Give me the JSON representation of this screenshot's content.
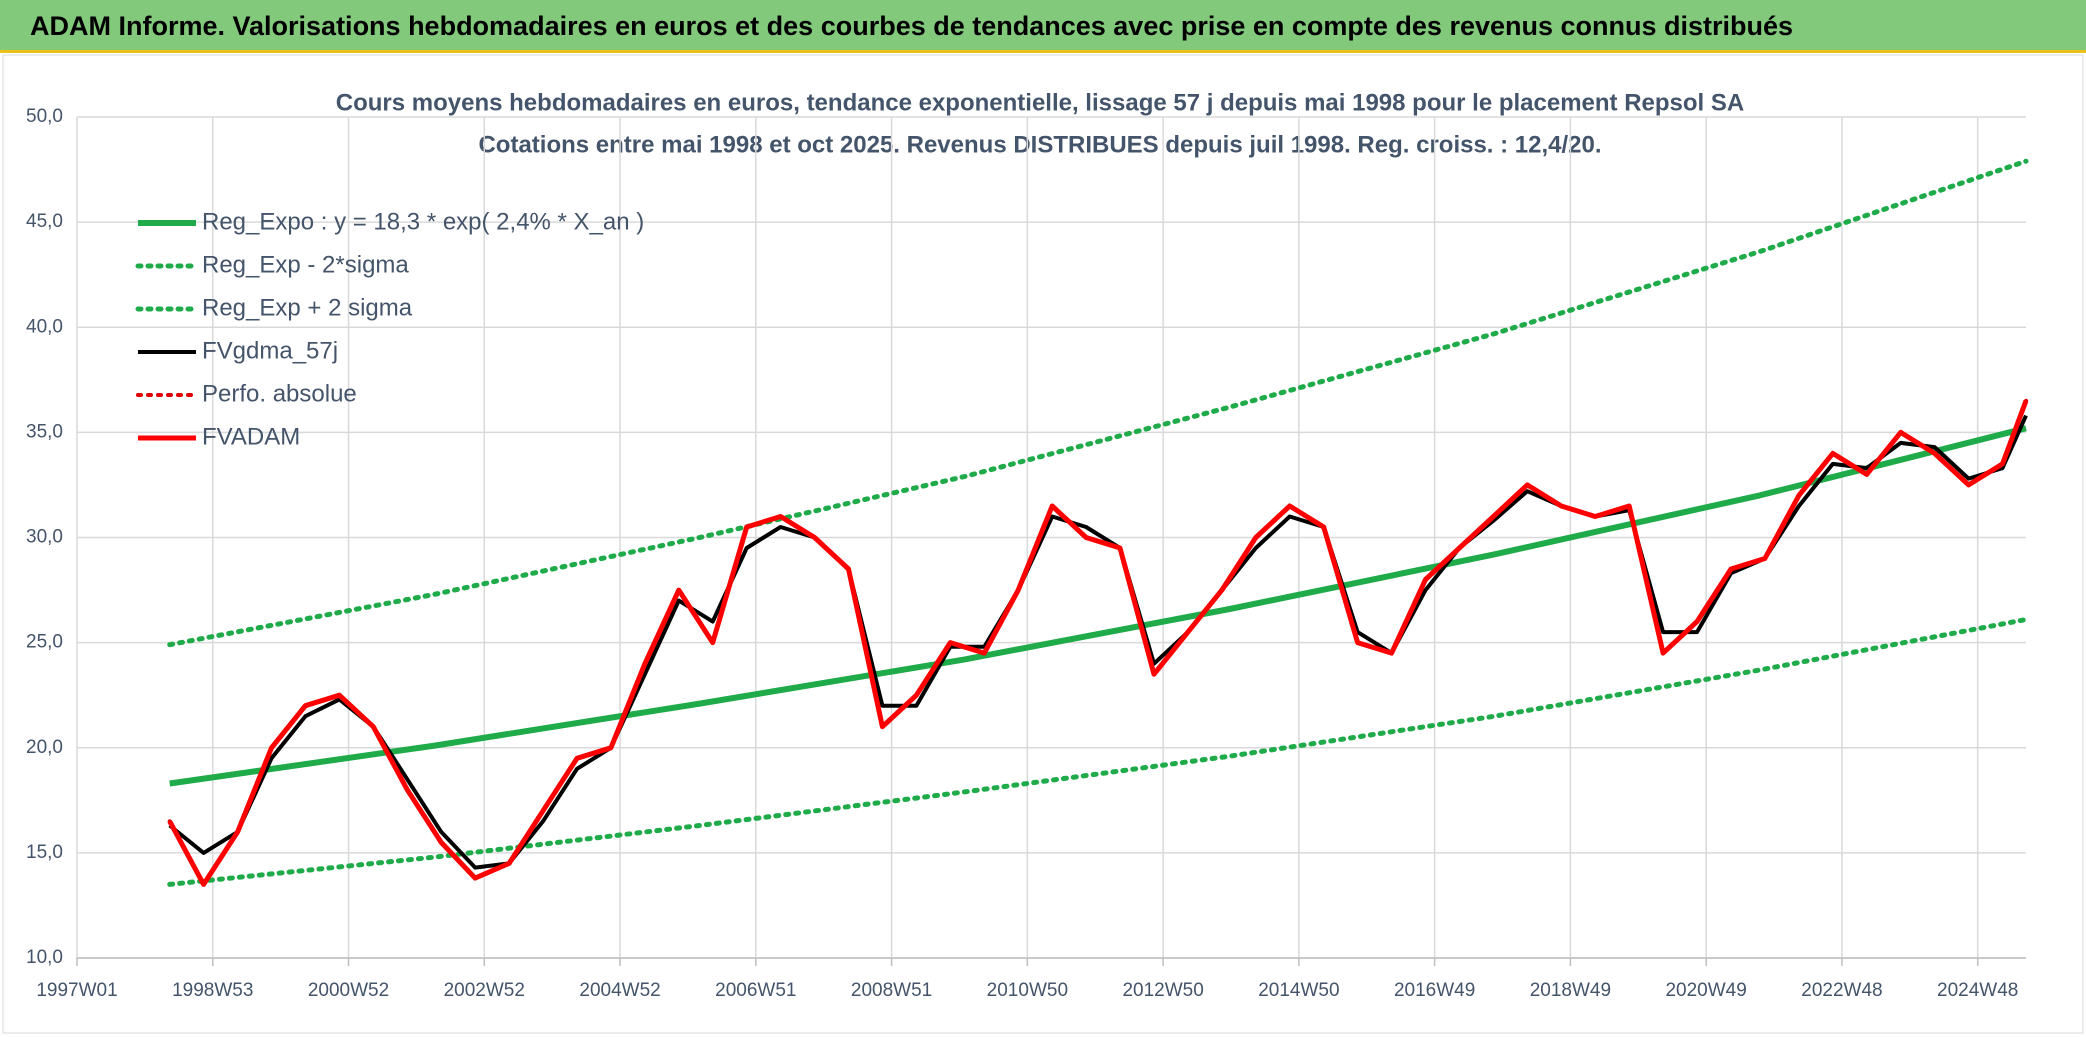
{
  "header": {
    "title": "ADAM Informe. Valorisations hebdomadaires en euros et des courbes de tendances avec prise en compte des revenus connus distribués"
  },
  "chart_data": {
    "type": "line",
    "title": "Cours moyens hebdomadaires en euros, tendance exponentielle, lissage 57 j depuis mai 1998 pour le placement Repsol SA",
    "subtitle": "Cotations entre mai 1998 et oct 2025. Revenus DISTRIBUES depuis juil 1998. Reg. croiss. : 12,4/20.",
    "grid": true,
    "xlim": [
      0,
      1493
    ],
    "xticks": [
      {
        "value": 0,
        "label": "1997W01"
      },
      {
        "value": 104,
        "label": "1998W53"
      },
      {
        "value": 208,
        "label": "2000W52"
      },
      {
        "value": 312,
        "label": "2002W52"
      },
      {
        "value": 416,
        "label": "2004W52"
      },
      {
        "value": 520,
        "label": "2006W51"
      },
      {
        "value": 624,
        "label": "2008W51"
      },
      {
        "value": 728,
        "label": "2010W50"
      },
      {
        "value": 832,
        "label": "2012W50"
      },
      {
        "value": 936,
        "label": "2014W50"
      },
      {
        "value": 1040,
        "label": "2016W49"
      },
      {
        "value": 1144,
        "label": "2018W49"
      },
      {
        "value": 1248,
        "label": "2020W49"
      },
      {
        "value": 1352,
        "label": "2022W48"
      },
      {
        "value": 1456,
        "label": "2024W48"
      }
    ],
    "ylim": [
      10,
      50
    ],
    "yticks": [
      {
        "value": 10,
        "label": "10,0"
      },
      {
        "value": 15,
        "label": "15,0"
      },
      {
        "value": 20,
        "label": "20,0"
      },
      {
        "value": 25,
        "label": "25,0"
      },
      {
        "value": 30,
        "label": "30,0"
      },
      {
        "value": 35,
        "label": "35,0"
      },
      {
        "value": 40,
        "label": "40,0"
      },
      {
        "value": 45,
        "label": "45,0"
      },
      {
        "value": 50,
        "label": "50,0"
      }
    ],
    "x": [
      71,
      97,
      123,
      149,
      175,
      201,
      227,
      253,
      279,
      305,
      331,
      357,
      383,
      409,
      435,
      461,
      487,
      513,
      539,
      565,
      591,
      617,
      643,
      669,
      695,
      721,
      747,
      773,
      799,
      825,
      851,
      877,
      903,
      929,
      955,
      981,
      1007,
      1033,
      1059,
      1085,
      1111,
      1137,
      1163,
      1189,
      1215,
      1241,
      1267,
      1293,
      1319,
      1345,
      1371,
      1397,
      1423,
      1449,
      1475,
      1493
    ],
    "series": [
      {
        "name": "Reg_Expo : y = 18,3 * exp( 2,4% *  X_an )",
        "color": "#1fab4a",
        "dash": "solid",
        "width": 6,
        "x": [
          71,
          274,
          477,
          680,
          883,
          1086,
          1289,
          1493
        ],
        "values": [
          18.3,
          20.1,
          22.1,
          24.2,
          26.6,
          29.2,
          32.0,
          35.2
        ]
      },
      {
        "name": "Reg_Exp - 2*sigma",
        "color": "#1fab4a",
        "dash": "dotted",
        "width": 5,
        "x": [
          71,
          274,
          477,
          680,
          883,
          1086,
          1289,
          1493
        ],
        "values": [
          13.5,
          14.8,
          16.3,
          17.9,
          19.6,
          21.5,
          23.7,
          26.1
        ]
      },
      {
        "name": "Reg_Exp + 2 sigma",
        "color": "#1fab4a",
        "dash": "dotted",
        "width": 5,
        "x": [
          71,
          274,
          477,
          680,
          883,
          1086,
          1289,
          1493
        ],
        "values": [
          24.9,
          27.3,
          30.0,
          32.9,
          36.2,
          39.7,
          43.6,
          47.9
        ]
      },
      {
        "name": "FVgdma_57j",
        "color": "#000000",
        "dash": "solid",
        "width": 4,
        "values": [
          16.3,
          15.0,
          16.0,
          19.5,
          21.5,
          22.3,
          21.0,
          18.5,
          16.0,
          14.3,
          14.5,
          16.5,
          19.0,
          20.0,
          23.5,
          27.0,
          26.0,
          29.5,
          30.5,
          30.0,
          28.5,
          22.0,
          22.0,
          24.8,
          24.8,
          27.5,
          31.0,
          30.5,
          29.5,
          24.0,
          25.5,
          27.5,
          29.5,
          31.0,
          30.5,
          25.5,
          24.5,
          27.5,
          29.5,
          30.8,
          32.2,
          31.5,
          31.0,
          31.3,
          25.5,
          25.5,
          28.3,
          29.0,
          31.5,
          33.5,
          33.3,
          34.5,
          34.3,
          32.8,
          33.3,
          35.8
        ]
      },
      {
        "name": "Perfo. absolue",
        "color": "#e00000",
        "dash": "dotted",
        "width": 4,
        "values": [
          16.5,
          13.5,
          16.0,
          20.0,
          22.0,
          22.5,
          21.0,
          18.0,
          15.5,
          13.8,
          14.5,
          17.0,
          19.5,
          20.0,
          24.0,
          27.5,
          25.0,
          30.5,
          31.0,
          30.0,
          28.5,
          21.0,
          22.5,
          25.0,
          24.5,
          27.5,
          31.5,
          30.0,
          29.5,
          23.5,
          25.5,
          27.5,
          30.0,
          31.5,
          30.5,
          25.0,
          24.5,
          28.0,
          29.5,
          31.0,
          32.5,
          31.5,
          31.0,
          31.5,
          24.5,
          26.0,
          28.5,
          29.0,
          32.0,
          34.0,
          33.0,
          35.0,
          34.0,
          32.5,
          33.5,
          36.5
        ]
      },
      {
        "name": "FVADAM",
        "color": "#ff0000",
        "dash": "solid",
        "width": 5,
        "values": [
          16.5,
          13.5,
          16.0,
          20.0,
          22.0,
          22.5,
          21.0,
          18.0,
          15.5,
          13.8,
          14.5,
          17.0,
          19.5,
          20.0,
          24.0,
          27.5,
          25.0,
          30.5,
          31.0,
          30.0,
          28.5,
          21.0,
          22.5,
          25.0,
          24.5,
          27.5,
          31.5,
          30.0,
          29.5,
          23.5,
          25.5,
          27.5,
          30.0,
          31.5,
          30.5,
          25.0,
          24.5,
          28.0,
          29.5,
          31.0,
          32.5,
          31.5,
          31.0,
          31.5,
          24.5,
          26.0,
          28.5,
          29.0,
          32.0,
          34.0,
          33.0,
          35.0,
          34.0,
          32.5,
          33.5,
          36.5
        ]
      }
    ]
  }
}
